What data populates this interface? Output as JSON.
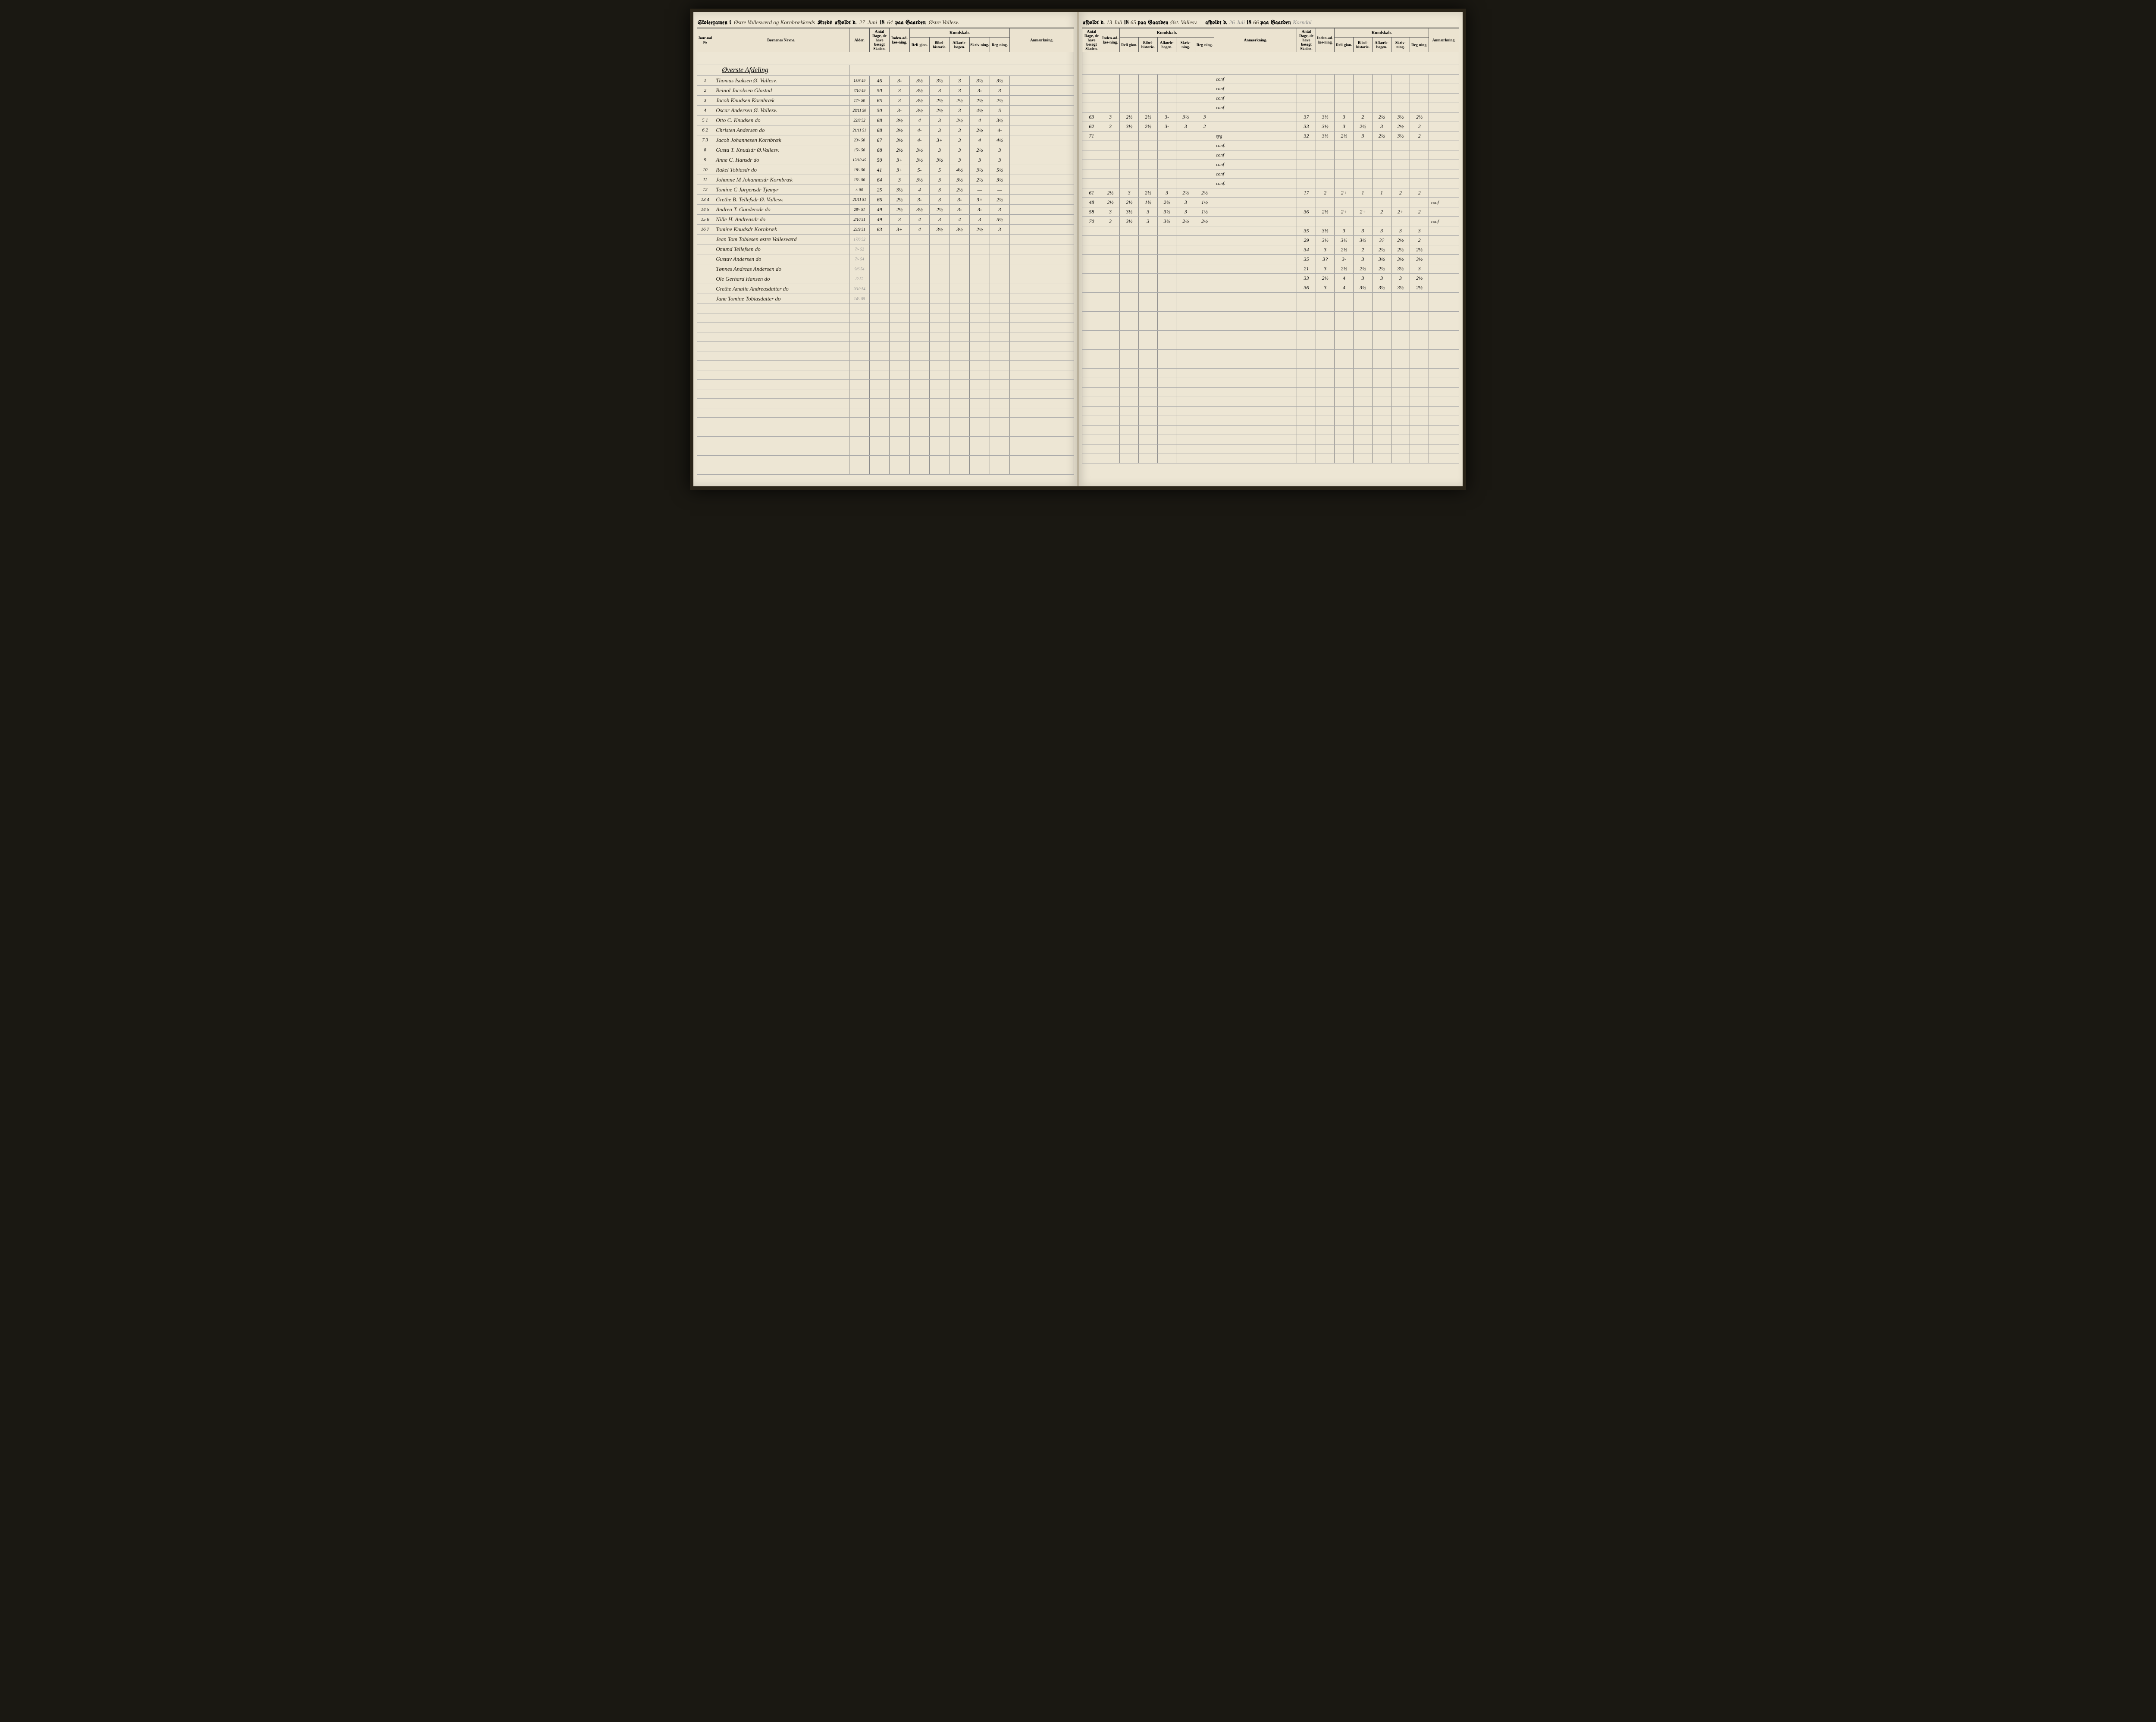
{
  "header_left": {
    "prefix": "Skoleexamen i",
    "kreds": "Østre Vallesværd og Kornbrækkreds",
    "afholdt": "afholdt d.",
    "date_day": "27",
    "date_month": "Juni",
    "year_prefix": "18",
    "year": "64",
    "paa": "paa Gaarden",
    "gaard": "Østre Vallesv."
  },
  "header_right_1": {
    "afholdt": "afholdt d.",
    "date_day": "13",
    "date_month": "Juli",
    "year_prefix": "18",
    "year": "65",
    "paa": "paa Gaarden",
    "gaard": "Øst. Vallesv."
  },
  "header_right_2": {
    "afholdt": "afholdt d.",
    "date_day": "26",
    "date_month": "Juli",
    "year_prefix": "18",
    "year": "66",
    "paa": "paa Gaarden",
    "gaard": "Korndal"
  },
  "columns": {
    "journal": "Jour-nal №",
    "navne": "Børnenes Navne.",
    "alder": "Alder.",
    "dage_group": "Antal Dage, de have besøgt Skolen.",
    "inden": "Inden-ad-læs-ning.",
    "kundskab": "Kundskab.",
    "religion": "Reli-gion.",
    "bibel": "Bibel-historie.",
    "afklar": "Afkørle-bogen.",
    "skriv": "Skriv-ning.",
    "reg": "Reg-ning.",
    "anm": "Anmærkning."
  },
  "section": "Øverste Afdeling",
  "rows_left": [
    {
      "j": "1",
      "name": "Thomas Isaksen Ø. Vallesv.",
      "alder": "15/6 49",
      "d": "46",
      "g": [
        "3-",
        "3½",
        "3½",
        "3",
        "3½",
        "3½"
      ],
      "note": ""
    },
    {
      "j": "2",
      "name": "Reinol Jacobsen Glastad",
      "alder": "7/10 49",
      "d": "50",
      "g": [
        "3",
        "3½",
        "3",
        "3",
        "3-",
        "3"
      ],
      "note": ""
    },
    {
      "j": "3",
      "name": "Jacob Knudsen Kornbræk",
      "alder": "17/- 50",
      "d": "65",
      "g": [
        "3",
        "3½",
        "2½",
        "2½",
        "2½",
        "2½"
      ],
      "note": ""
    },
    {
      "j": "4",
      "name": "Oscar Andersen Ø. Vallesv.",
      "alder": "28/11 50",
      "d": "50",
      "g": [
        "3-",
        "3½",
        "2½",
        "3",
        "4½",
        "5"
      ],
      "note": ""
    },
    {
      "j": "5 1",
      "name": "Otto C. Knudsen    do",
      "alder": "22/8 52",
      "d": "68",
      "g": [
        "3½",
        "4",
        "3",
        "2½",
        "4",
        "3½"
      ],
      "note": ""
    },
    {
      "j": "6 2",
      "name": "Christen Andersen    do",
      "alder": "21/11 51",
      "d": "68",
      "g": [
        "3½",
        "4-",
        "3",
        "3",
        "2½",
        "4-"
      ],
      "note": ""
    },
    {
      "j": "7 3",
      "name": "Jacob Johannesen Kornbræk",
      "alder": "23/- 50",
      "d": "67",
      "g": [
        "3½",
        "4-",
        "3+",
        "3",
        "4",
        "4½"
      ],
      "note": ""
    },
    {
      "j": "8",
      "name": "Gusta T. Knudsdr Ø.Vallesv.",
      "alder": "15/- 50",
      "d": "68",
      "g": [
        "2½",
        "3½",
        "3",
        "3",
        "2½",
        "3"
      ],
      "note": ""
    },
    {
      "j": "9",
      "name": "Anne C. Hansdr    do",
      "alder": "12/10 49",
      "d": "50",
      "g": [
        "3+",
        "3½",
        "3½",
        "3",
        "3",
        "3"
      ],
      "note": ""
    },
    {
      "j": "10",
      "name": "Rakel Tobiasdr    do",
      "alder": "18/- 50",
      "d": "41",
      "g": [
        "3+",
        "5-",
        "5",
        "4½",
        "3½",
        "5½"
      ],
      "note": ""
    },
    {
      "j": "11",
      "name": "Johanne M Johannesdr Kornbræk",
      "alder": "15/- 50",
      "d": "64",
      "g": [
        "3",
        "3½",
        "3",
        "3½",
        "2½",
        "3½"
      ],
      "note": ""
    },
    {
      "j": "12",
      "name": "Tomine C Jørgensdr Tjemyr",
      "alder": "/- 50",
      "d": "25",
      "g": [
        "3½",
        "4",
        "3",
        "2½",
        "—",
        "—"
      ],
      "note": ""
    },
    {
      "j": "13 4",
      "name": "Grethe B. Tellefsdr Ø. Vallesv.",
      "alder": "21/11 51",
      "d": "66",
      "g": [
        "2½",
        "3-",
        "3",
        "3-",
        "3+",
        "2½"
      ],
      "note": ""
    },
    {
      "j": "14 5",
      "name": "Andrea T. Gundersdr    do",
      "alder": "28/- 51",
      "d": "49",
      "g": [
        "2½",
        "3½",
        "2½",
        "3-",
        "3-",
        "3"
      ],
      "note": ""
    },
    {
      "j": "15 6",
      "name": "Nille H. Andreasdr    do",
      "alder": "2/10 51",
      "d": "49",
      "g": [
        "3",
        "4",
        "3",
        "4",
        "3",
        "5½"
      ],
      "note": ""
    },
    {
      "j": "16 7",
      "name": "Tomine Knudsdr Kornbræk",
      "alder": "23/9 51",
      "d": "63",
      "g": [
        "3+",
        "4",
        "3½",
        "3½",
        "2½",
        "3"
      ],
      "note": ""
    },
    {
      "j": "",
      "name": "Jean Tom Tobiesen østre Vallesværd",
      "alder": "17/6 52",
      "d": "",
      "g": [
        "",
        "",
        "",
        "",
        "",
        ""
      ],
      "note": "",
      "faded": true
    },
    {
      "j": "",
      "name": "Omund Tellefsen    do",
      "alder": "7/- 52",
      "d": "",
      "g": [
        "",
        "",
        "",
        "",
        "",
        ""
      ],
      "note": "",
      "faded": true
    },
    {
      "j": "",
      "name": "Gustav Andersen    do",
      "alder": "7/- 54",
      "d": "",
      "g": [
        "",
        "",
        "",
        "",
        "",
        ""
      ],
      "note": "",
      "faded": true
    },
    {
      "j": "",
      "name": "Tønnes Andreas Andersen    do",
      "alder": "9/6 54",
      "d": "",
      "g": [
        "",
        "",
        "",
        "",
        "",
        ""
      ],
      "note": "",
      "faded": true
    },
    {
      "j": "",
      "name": "Ole Gerhard Hansen    do",
      "alder": "/2 52",
      "d": "",
      "g": [
        "",
        "",
        "",
        "",
        "",
        ""
      ],
      "note": "",
      "faded": true
    },
    {
      "j": "",
      "name": "Grethe Amalie Andreasdatter do",
      "alder": "9/10 54",
      "d": "",
      "g": [
        "",
        "",
        "",
        "",
        "",
        ""
      ],
      "note": "",
      "faded": true
    },
    {
      "j": "",
      "name": "Jane Tomine Tobiasdatter do",
      "alder": "14/- 55",
      "d": "",
      "g": [
        "",
        "",
        "",
        "",
        "",
        ""
      ],
      "note": "",
      "faded": true
    }
  ],
  "rows_right_1": [
    {
      "d": "",
      "g": [
        "",
        "",
        "",
        "",
        "",
        ""
      ],
      "note": "conf"
    },
    {
      "d": "",
      "g": [
        "",
        "",
        "",
        "",
        "",
        ""
      ],
      "note": "conf"
    },
    {
      "d": "",
      "g": [
        "",
        "",
        "",
        "",
        "",
        ""
      ],
      "note": "conf"
    },
    {
      "d": "",
      "g": [
        "",
        "",
        "",
        "",
        "",
        ""
      ],
      "note": "conf"
    },
    {
      "d": "63",
      "g": [
        "3",
        "2½",
        "2½",
        "3-",
        "3½",
        "3"
      ],
      "note": ""
    },
    {
      "d": "62",
      "g": [
        "3",
        "3½",
        "2½",
        "3-",
        "3",
        "2"
      ],
      "note": ""
    },
    {
      "d": "71",
      "g": [
        "",
        "",
        "",
        "",
        "",
        ""
      ],
      "note": "syg"
    },
    {
      "d": "",
      "g": [
        "",
        "",
        "",
        "",
        "",
        ""
      ],
      "note": "conf."
    },
    {
      "d": "",
      "g": [
        "",
        "",
        "",
        "",
        "",
        ""
      ],
      "note": "conf"
    },
    {
      "d": "",
      "g": [
        "",
        "",
        "",
        "",
        "",
        ""
      ],
      "note": "conf"
    },
    {
      "d": "",
      "g": [
        "",
        "",
        "",
        "",
        "",
        ""
      ],
      "note": "conf"
    },
    {
      "d": "",
      "g": [
        "",
        "",
        "",
        "",
        "",
        ""
      ],
      "note": "conf."
    },
    {
      "d": "61",
      "g": [
        "2½",
        "3",
        "2½",
        "3",
        "2½",
        "2½"
      ],
      "note": ""
    },
    {
      "d": "48",
      "g": [
        "2½",
        "2½",
        "1½",
        "2½",
        "3",
        "1½"
      ],
      "note": ""
    },
    {
      "d": "58",
      "g": [
        "3",
        "3½",
        "3",
        "3½",
        "3",
        "1½"
      ],
      "note": ""
    },
    {
      "d": "70",
      "g": [
        "3",
        "3½",
        "3",
        "3½",
        "2½",
        "2½"
      ],
      "note": ""
    },
    {
      "d": "",
      "g": [
        "",
        "",
        "",
        "",
        "",
        ""
      ],
      "note": ""
    },
    {
      "d": "",
      "g": [
        "",
        "",
        "",
        "",
        "",
        ""
      ],
      "note": ""
    },
    {
      "d": "",
      "g": [
        "",
        "",
        "",
        "",
        "",
        ""
      ],
      "note": ""
    },
    {
      "d": "",
      "g": [
        "",
        "",
        "",
        "",
        "",
        ""
      ],
      "note": ""
    },
    {
      "d": "",
      "g": [
        "",
        "",
        "",
        "",
        "",
        ""
      ],
      "note": ""
    },
    {
      "d": "",
      "g": [
        "",
        "",
        "",
        "",
        "",
        ""
      ],
      "note": ""
    },
    {
      "d": "",
      "g": [
        "",
        "",
        "",
        "",
        "",
        ""
      ],
      "note": ""
    }
  ],
  "rows_right_2": [
    {
      "d": "",
      "g": [
        "",
        "",
        "",
        "",
        "",
        ""
      ],
      "note": ""
    },
    {
      "d": "",
      "g": [
        "",
        "",
        "",
        "",
        "",
        ""
      ],
      "note": ""
    },
    {
      "d": "",
      "g": [
        "",
        "",
        "",
        "",
        "",
        ""
      ],
      "note": ""
    },
    {
      "d": "",
      "g": [
        "",
        "",
        "",
        "",
        "",
        ""
      ],
      "note": ""
    },
    {
      "d": "37",
      "g": [
        "3½",
        "3",
        "2",
        "2½",
        "3½",
        "2½"
      ],
      "note": ""
    },
    {
      "d": "33",
      "g": [
        "3½",
        "3",
        "2½",
        "3",
        "2½",
        "2"
      ],
      "note": ""
    },
    {
      "d": "32",
      "g": [
        "3½",
        "2½",
        "3",
        "2½",
        "3½",
        "2"
      ],
      "note": ""
    },
    {
      "d": "",
      "g": [
        "",
        "",
        "",
        "",
        "",
        ""
      ],
      "note": ""
    },
    {
      "d": "",
      "g": [
        "",
        "",
        "",
        "",
        "",
        ""
      ],
      "note": ""
    },
    {
      "d": "",
      "g": [
        "",
        "",
        "",
        "",
        "",
        ""
      ],
      "note": ""
    },
    {
      "d": "",
      "g": [
        "",
        "",
        "",
        "",
        "",
        ""
      ],
      "note": ""
    },
    {
      "d": "",
      "g": [
        "",
        "",
        "",
        "",
        "",
        ""
      ],
      "note": ""
    },
    {
      "d": "17",
      "g": [
        "2",
        "2+",
        "1",
        "1",
        "2",
        "2"
      ],
      "note": ""
    },
    {
      "d": "",
      "g": [
        "",
        "",
        "",
        "",
        "",
        ""
      ],
      "note": "conf"
    },
    {
      "d": "36",
      "g": [
        "2½",
        "2+",
        "2+",
        "2",
        "2+",
        "2"
      ],
      "note": ""
    },
    {
      "d": "",
      "g": [
        "",
        "",
        "",
        "",
        "",
        ""
      ],
      "note": "conf"
    },
    {
      "d": "35",
      "g": [
        "3½",
        "3",
        "3",
        "3",
        "3",
        "3"
      ],
      "note": ""
    },
    {
      "d": "29",
      "g": [
        "3½",
        "3½",
        "3½",
        "3?",
        "2½",
        "2"
      ],
      "note": ""
    },
    {
      "d": "34",
      "g": [
        "3",
        "2½",
        "2",
        "2½",
        "2½",
        "2½"
      ],
      "note": ""
    },
    {
      "d": "35",
      "g": [
        "3?",
        "3-",
        "3",
        "3½",
        "3½",
        "3½"
      ],
      "note": ""
    },
    {
      "d": "21",
      "g": [
        "3",
        "2½",
        "2½",
        "2½",
        "3½",
        "3"
      ],
      "note": ""
    },
    {
      "d": "33",
      "g": [
        "2½",
        "4",
        "3",
        "3",
        "3",
        "2½"
      ],
      "note": ""
    },
    {
      "d": "36",
      "g": [
        "3",
        "4",
        "3½",
        "3½",
        "3½",
        "2½"
      ],
      "note": ""
    }
  ],
  "empty_rows": 18
}
